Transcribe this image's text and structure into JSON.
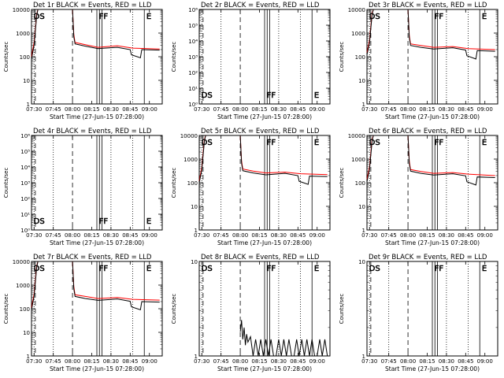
{
  "chart_data": [
    {
      "type": "line",
      "title": "Det 1r BLACK = Events, RED = LLD",
      "xlabel": "Start Time (27-Jun-15 07:28:00)",
      "ylabel": "Counts/sec",
      "yscale": "log",
      "ylim": [
        1,
        10000
      ],
      "ytick_labels": [
        "1",
        "10",
        "100",
        "1000",
        "10000"
      ],
      "xlim": [
        "07:28",
        "09:10"
      ],
      "xtick_labels": [
        "07:30",
        "07:45",
        "08:00",
        "08:15",
        "08:30",
        "08:45",
        "09:00"
      ],
      "markers": [
        "DS",
        "FF",
        "E"
      ],
      "series": [
        {
          "color": "#ff0000",
          "x": [
            "07:28",
            "07:30",
            "07:31",
            "07:32",
            "07:33",
            "07:35",
            "08:00",
            "08:01",
            "08:02",
            "08:10",
            "08:20",
            "08:35",
            "08:47",
            "09:08"
          ],
          "y": [
            100,
            400,
            1500,
            6000,
            10000,
            10000,
            10000,
            900,
            400,
            320,
            250,
            290,
            230,
            210
          ]
        },
        {
          "color": "#000000",
          "x": [
            "07:28",
            "07:30",
            "07:31",
            "07:32",
            "07:33",
            "07:35",
            "08:00",
            "08:01",
            "08:02",
            "08:10",
            "08:20",
            "08:35",
            "08:45",
            "08:46",
            "08:53",
            "08:54",
            "09:08"
          ],
          "y": [
            80,
            300,
            1200,
            5000,
            10000,
            10000,
            10000,
            700,
            350,
            280,
            220,
            250,
            200,
            120,
            90,
            200,
            190
          ]
        }
      ]
    },
    {
      "type": "line",
      "title": "Det 2r BLACK = Events, RED = LLD",
      "xlabel": "Start Time (27-Jun-15 07:28:00)",
      "ylabel": "Counts/sec",
      "yscale": "log",
      "ylim": [
        1,
        1000000
      ],
      "ytick_labels": [
        "10⁰",
        "10¹",
        "10²",
        "10³",
        "10⁴",
        "10⁵",
        "10⁶"
      ],
      "xlim": [
        "07:28",
        "09:10"
      ],
      "xtick_labels": [
        "07:30",
        "07:45",
        "08:00",
        "08:15",
        "08:30",
        "08:45",
        "09:00"
      ],
      "markers": [
        "DS",
        "FF",
        "E"
      ],
      "series": []
    },
    {
      "type": "line",
      "title": "Det 3r BLACK = Events, RED = LLD",
      "xlabel": "Start Time (27-Jun-15 07:28:00)",
      "ylabel": "Counts/sec",
      "yscale": "log",
      "ylim": [
        1,
        10000
      ],
      "ytick_labels": [
        "1",
        "10",
        "100",
        "1000",
        "10000"
      ],
      "xlim": [
        "07:28",
        "09:10"
      ],
      "xtick_labels": [
        "07:30",
        "07:45",
        "08:00",
        "08:15",
        "08:30",
        "08:45",
        "09:00"
      ],
      "markers": [
        "DS",
        "FF",
        "E"
      ],
      "series": [
        {
          "color": "#ff0000",
          "x": [
            "07:28",
            "07:30",
            "07:31",
            "07:32",
            "07:33",
            "07:35",
            "08:00",
            "08:01",
            "08:02",
            "08:10",
            "08:20",
            "08:35",
            "08:47",
            "09:08"
          ],
          "y": [
            150,
            500,
            2000,
            7000,
            10000,
            10000,
            10000,
            800,
            350,
            300,
            250,
            270,
            220,
            200
          ]
        },
        {
          "color": "#000000",
          "x": [
            "07:28",
            "07:30",
            "07:31",
            "07:32",
            "07:33",
            "07:35",
            "08:00",
            "08:01",
            "08:02",
            "08:10",
            "08:20",
            "08:35",
            "08:45",
            "08:46",
            "08:53",
            "08:54",
            "09:08"
          ],
          "y": [
            120,
            400,
            1600,
            6000,
            10000,
            10000,
            10000,
            650,
            300,
            250,
            210,
            240,
            190,
            110,
            80,
            180,
            170
          ]
        }
      ]
    },
    {
      "type": "line",
      "title": "Det 4r BLACK = Events, RED = LLD",
      "xlabel": "Start Time (27-Jun-15 07:28:00)",
      "ylabel": "Counts/sec",
      "yscale": "log",
      "ylim": [
        1,
        1000000
      ],
      "ytick_labels": [
        "10⁰",
        "10¹",
        "10²",
        "10³",
        "10⁴",
        "10⁵",
        "10⁶"
      ],
      "xlim": [
        "07:28",
        "09:10"
      ],
      "xtick_labels": [
        "07:30",
        "07:45",
        "08:00",
        "08:15",
        "08:30",
        "08:45",
        "09:00"
      ],
      "markers": [
        "DS",
        "FF",
        "E"
      ],
      "series": []
    },
    {
      "type": "line",
      "title": "Det 5r BLACK = Events, RED = LLD",
      "xlabel": "Start Time (27-Jun-15 07:28:00)",
      "ylabel": "Counts/sec",
      "yscale": "log",
      "ylim": [
        1,
        10000
      ],
      "ytick_labels": [
        "1",
        "10",
        "100",
        "1000",
        "10000"
      ],
      "xlim": [
        "07:28",
        "09:10"
      ],
      "xtick_labels": [
        "07:30",
        "07:45",
        "08:00",
        "08:15",
        "08:30",
        "08:45",
        "09:00"
      ],
      "markers": [
        "DS",
        "FF",
        "E"
      ],
      "series": [
        {
          "color": "#ff0000",
          "x": [
            "07:28",
            "07:30",
            "07:31",
            "07:32",
            "07:33",
            "07:35",
            "08:00",
            "08:01",
            "08:02",
            "08:10",
            "08:20",
            "08:35",
            "08:47",
            "09:08"
          ],
          "y": [
            120,
            450,
            1800,
            6500,
            10000,
            10000,
            10000,
            850,
            380,
            310,
            260,
            280,
            240,
            220
          ]
        },
        {
          "color": "#000000",
          "x": [
            "07:28",
            "07:30",
            "07:31",
            "07:32",
            "07:33",
            "07:35",
            "08:00",
            "08:01",
            "08:02",
            "08:10",
            "08:20",
            "08:35",
            "08:45",
            "08:46",
            "08:53",
            "08:54",
            "09:08"
          ],
          "y": [
            100,
            350,
            1400,
            5500,
            10000,
            10000,
            10000,
            680,
            320,
            260,
            215,
            250,
            200,
            115,
            85,
            190,
            180
          ]
        }
      ]
    },
    {
      "type": "line",
      "title": "Det 6r BLACK = Events, RED = LLD",
      "xlabel": "Start Time (27-Jun-15 07:28:00)",
      "ylabel": "Counts/sec",
      "yscale": "log",
      "ylim": [
        1,
        10000
      ],
      "ytick_labels": [
        "1",
        "10",
        "100",
        "1000",
        "10000"
      ],
      "xlim": [
        "07:28",
        "09:10"
      ],
      "xtick_labels": [
        "07:30",
        "07:45",
        "08:00",
        "08:15",
        "08:30",
        "08:45",
        "09:00"
      ],
      "markers": [
        "DS",
        "FF",
        "E"
      ],
      "series": [
        {
          "color": "#ff0000",
          "x": [
            "07:28",
            "07:30",
            "07:31",
            "07:32",
            "07:33",
            "07:35",
            "08:00",
            "08:01",
            "08:02",
            "08:10",
            "08:20",
            "08:35",
            "08:47",
            "09:08"
          ],
          "y": [
            140,
            480,
            1900,
            6800,
            10000,
            10000,
            10000,
            820,
            360,
            300,
            250,
            270,
            230,
            200
          ]
        },
        {
          "color": "#000000",
          "x": [
            "07:28",
            "07:30",
            "07:31",
            "07:32",
            "07:33",
            "07:35",
            "08:00",
            "08:01",
            "08:02",
            "08:10",
            "08:20",
            "08:35",
            "08:45",
            "08:46",
            "08:53",
            "08:54",
            "09:08"
          ],
          "y": [
            110,
            380,
            1500,
            5800,
            10000,
            10000,
            10000,
            660,
            310,
            250,
            210,
            240,
            195,
            110,
            80,
            175,
            165
          ]
        }
      ]
    },
    {
      "type": "line",
      "title": "Det 7r BLACK = Events, RED = LLD",
      "xlabel": "Start Time (27-Jun-15 07:28:00)",
      "ylabel": "Counts/sec",
      "yscale": "log",
      "ylim": [
        1,
        10000
      ],
      "ytick_labels": [
        "1",
        "10",
        "100",
        "1000",
        "10000"
      ],
      "xlim": [
        "07:28",
        "09:10"
      ],
      "xtick_labels": [
        "07:30",
        "07:45",
        "08:00",
        "08:15",
        "08:30",
        "08:45",
        "09:00"
      ],
      "markers": [
        "DS",
        "FF",
        "E"
      ],
      "series": [
        {
          "color": "#ff0000",
          "x": [
            "07:28",
            "07:30",
            "07:31",
            "07:32",
            "07:33",
            "07:35",
            "08:00",
            "08:01",
            "08:02",
            "08:10",
            "08:20",
            "08:35",
            "08:47",
            "09:08"
          ],
          "y": [
            110,
            420,
            1700,
            6200,
            10000,
            10000,
            10000,
            880,
            390,
            330,
            270,
            300,
            250,
            230
          ]
        },
        {
          "color": "#000000",
          "x": [
            "07:28",
            "07:30",
            "07:31",
            "07:32",
            "07:33",
            "07:35",
            "08:00",
            "08:01",
            "08:02",
            "08:10",
            "08:20",
            "08:35",
            "08:45",
            "08:46",
            "08:53",
            "08:54",
            "09:08"
          ],
          "y": [
            90,
            330,
            1300,
            5200,
            10000,
            10000,
            10000,
            700,
            330,
            270,
            225,
            260,
            205,
            120,
            90,
            200,
            190
          ]
        }
      ]
    },
    {
      "type": "line",
      "title": "Det 8r BLACK = Events, RED = LLD",
      "xlabel": "Start Time (27-Jun-15 07:28:00)",
      "ylabel": "Counts/sec",
      "yscale": "log",
      "ylim": [
        1,
        10
      ],
      "ytick_labels": [
        "1",
        "10"
      ],
      "xlim": [
        "07:28",
        "09:10"
      ],
      "xtick_labels": [
        "07:30",
        "07:45",
        "08:00",
        "08:15",
        "08:30",
        "08:45",
        "09:00"
      ],
      "markers": [
        "DS",
        "FF",
        "E"
      ],
      "series": [
        {
          "color": "#000000",
          "x": [
            "08:00",
            "08:01",
            "08:02",
            "08:03",
            "08:04",
            "08:05",
            "08:06",
            "08:08",
            "08:10",
            "08:12",
            "08:14",
            "08:16",
            "08:18",
            "08:20",
            "08:22",
            "08:24",
            "08:26",
            "08:28",
            "08:30",
            "08:32",
            "08:34",
            "08:36",
            "08:38",
            "08:40",
            "08:42",
            "08:44",
            "08:46",
            "08:48",
            "08:50",
            "08:52",
            "08:54",
            "08:56",
            "08:58",
            "09:00",
            "09:02",
            "09:04",
            "09:06",
            "09:08"
          ],
          "y": [
            1.8,
            2.4,
            1.5,
            2.0,
            1.3,
            1.7,
            1.4,
            1.6,
            1,
            1.5,
            1,
            1.5,
            1,
            1.5,
            1,
            1.5,
            1,
            1,
            1.5,
            1,
            1.5,
            1,
            1.5,
            1,
            1,
            1.5,
            1,
            1.5,
            1,
            1.5,
            1,
            1.5,
            1,
            1,
            1.5,
            1,
            1.5,
            1
          ]
        }
      ]
    },
    {
      "type": "line",
      "title": "Det 9r BLACK = Events, RED = LLD",
      "xlabel": "Start Time (27-Jun-15 07:28:00)",
      "ylabel": "Counts/sec",
      "yscale": "log",
      "ylim": [
        1,
        10
      ],
      "ytick_labels": [
        "1",
        "10"
      ],
      "xlim": [
        "07:28",
        "09:10"
      ],
      "xtick_labels": [
        "07:30",
        "07:45",
        "08:00",
        "08:15",
        "08:30",
        "08:45",
        "09:00"
      ],
      "markers": [
        "DS",
        "FF",
        "E"
      ],
      "series": []
    }
  ]
}
